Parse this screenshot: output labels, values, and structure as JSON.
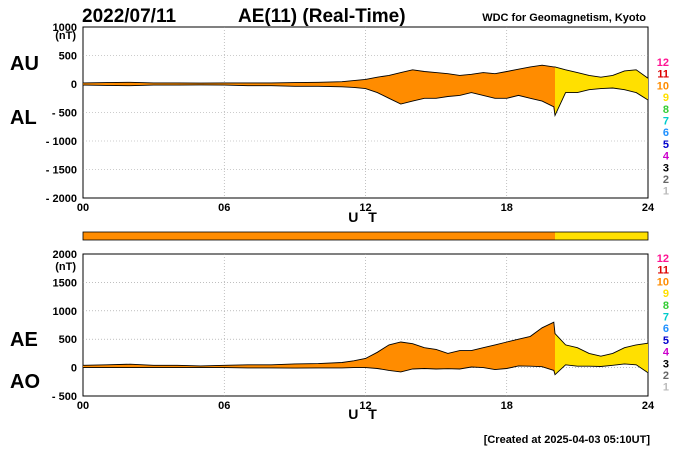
{
  "header": {
    "date": "2022/07/11",
    "title": "AE(11) (Real-Time)",
    "source": "WDC for Geomagnetism, Kyoto",
    "created": "[Created at 2025-04-03 05:10UT]"
  },
  "legend": {
    "levels": [
      "12",
      "11",
      "10",
      "9",
      "8",
      "7",
      "6",
      "5",
      "4",
      "3",
      "2",
      "1"
    ],
    "colors": [
      "#ff1493",
      "#dd0000",
      "#ff8c00",
      "#ffe000",
      "#33cc33",
      "#00cccc",
      "#1e90ff",
      "#0000cc",
      "#cc00cc",
      "#000000",
      "#666666",
      "#bbbbbb"
    ]
  },
  "colors": {
    "orange": "#f7931e",
    "yellow": "#ffff22"
  },
  "chart_data": [
    {
      "type": "area",
      "panel": "top",
      "unit": "(nT)",
      "series_labels": [
        "AU",
        "AL"
      ],
      "xlabel": "U T",
      "xlim": [
        0,
        24
      ],
      "ylim": [
        -2000,
        1000
      ],
      "xticks": [
        0,
        6,
        12,
        18,
        24
      ],
      "xtick_labels": [
        "00",
        "06",
        "12",
        "18",
        "24"
      ],
      "yticks": [
        1000,
        500,
        0,
        -500,
        -1000,
        -1500,
        -2000
      ],
      "ytick_labels": [
        "1000",
        "500",
        "0",
        "- 500",
        "- 1000",
        "- 1500",
        "- 2000"
      ],
      "x": [
        0,
        1,
        2,
        3,
        4,
        5,
        6,
        7,
        8,
        9,
        10,
        11,
        11.5,
        12,
        12.5,
        13,
        13.5,
        14,
        14.5,
        15,
        15.5,
        16,
        16.5,
        17,
        17.5,
        18,
        18.5,
        19,
        19.5,
        20,
        20.05,
        20.5,
        21,
        21.5,
        22,
        22.5,
        23,
        23.5,
        24
      ],
      "AU": [
        20,
        25,
        30,
        20,
        20,
        15,
        20,
        20,
        20,
        25,
        30,
        40,
        60,
        80,
        120,
        150,
        200,
        250,
        220,
        200,
        180,
        150,
        170,
        200,
        180,
        220,
        260,
        300,
        330,
        300,
        300,
        250,
        200,
        150,
        120,
        150,
        230,
        250,
        100
      ],
      "AL": [
        -20,
        -25,
        -30,
        -20,
        -20,
        -15,
        -20,
        -30,
        -30,
        -40,
        -40,
        -50,
        -60,
        -80,
        -150,
        -250,
        -350,
        -300,
        -250,
        -250,
        -220,
        -200,
        -150,
        -200,
        -250,
        -250,
        -200,
        -250,
        -300,
        -400,
        -550,
        -150,
        -150,
        -100,
        -80,
        -70,
        -100,
        -150,
        -280
      ],
      "shading": [
        {
          "x0": 0,
          "x1": 20.05,
          "level": "10"
        },
        {
          "x0": 20.05,
          "x1": 24,
          "level": "9"
        }
      ]
    },
    {
      "type": "area",
      "panel": "bottom",
      "unit": "(nT)",
      "series_labels": [
        "AE",
        "AO"
      ],
      "xlabel": "U T",
      "xlim": [
        0,
        24
      ],
      "ylim": [
        -500,
        2000
      ],
      "xticks": [
        0,
        6,
        12,
        18,
        24
      ],
      "xtick_labels": [
        "00",
        "06",
        "12",
        "18",
        "24"
      ],
      "yticks": [
        2000,
        1500,
        1000,
        500,
        0,
        -500
      ],
      "ytick_labels": [
        "2000",
        "1500",
        "1000",
        "500",
        "0",
        "- 500"
      ],
      "x": [
        0,
        1,
        2,
        3,
        4,
        5,
        6,
        7,
        8,
        9,
        10,
        11,
        11.5,
        12,
        12.5,
        13,
        13.5,
        14,
        14.5,
        15,
        15.5,
        16,
        16.5,
        17,
        17.5,
        18,
        18.5,
        19,
        19.5,
        20,
        20.05,
        20.5,
        21,
        21.5,
        22,
        22.5,
        23,
        23.5,
        24
      ],
      "AE": [
        40,
        50,
        60,
        40,
        40,
        30,
        40,
        50,
        50,
        65,
        70,
        90,
        120,
        160,
        270,
        400,
        450,
        420,
        350,
        320,
        250,
        300,
        300,
        350,
        400,
        450,
        500,
        550,
        700,
        800,
        600,
        400,
        350,
        250,
        200,
        250,
        350,
        400,
        430
      ],
      "AO": [
        0,
        0,
        0,
        0,
        0,
        0,
        0,
        -5,
        -5,
        -8,
        -5,
        -5,
        0,
        0,
        -15,
        -50,
        -75,
        -25,
        -15,
        -25,
        -20,
        -25,
        10,
        0,
        -35,
        -15,
        30,
        25,
        15,
        -50,
        -125,
        50,
        25,
        25,
        20,
        40,
        65,
        50,
        -90
      ],
      "shading": [
        {
          "x0": 0,
          "x1": 20.05,
          "level": "10"
        },
        {
          "x0": 20.05,
          "x1": 24,
          "level": "9"
        }
      ]
    }
  ]
}
